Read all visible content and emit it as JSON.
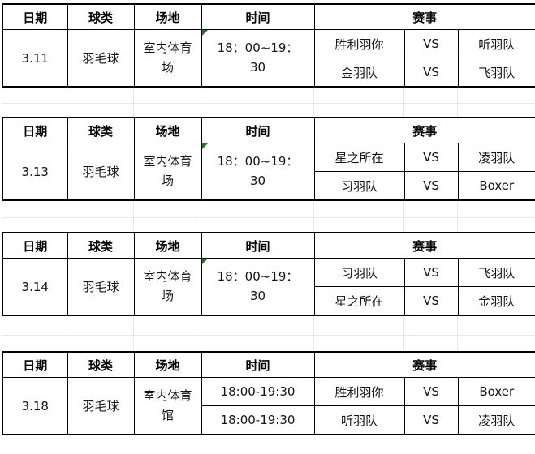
{
  "headers": {
    "date": "日期",
    "ball": "球类",
    "venue": "场地",
    "time": "时间",
    "event": "赛事"
  },
  "labels": {
    "vs": "VS"
  },
  "colors": {
    "border": "#000000",
    "flag_green": "#1e7d1e",
    "faint_grid": "#e8e8e8"
  },
  "icons": {
    "comment_flag": "green-corner-triangle"
  },
  "tables": [
    {
      "date": "3.11",
      "ball": "羽毛球",
      "venue": "室内体育场",
      "time": "18：00~19：30",
      "time_flag": true,
      "matches": [
        {
          "home": "胜利羽你",
          "away": "听羽队"
        },
        {
          "home": "金羽队",
          "away": "飞羽队"
        }
      ]
    },
    {
      "date": "3.13",
      "ball": "羽毛球",
      "venue": "室内体育场",
      "time": "18：00~19：30",
      "time_flag": true,
      "matches": [
        {
          "home": "星之所在",
          "away": "凌羽队"
        },
        {
          "home": "习羽队",
          "away": "Boxer"
        }
      ]
    },
    {
      "date": "3.14",
      "ball": "羽毛球",
      "venue": "室内体育场",
      "time": "18：00~19：30",
      "time_flag": true,
      "matches": [
        {
          "home": "习羽队",
          "away": "飞羽队"
        },
        {
          "home": "星之所在",
          "away": "金羽队"
        }
      ]
    },
    {
      "date": "3.18",
      "ball": "羽毛球",
      "venue": "室内体育馆",
      "matches": [
        {
          "time": "18:00-19:30",
          "home": "胜利羽你",
          "away": "Boxer"
        },
        {
          "time": "18:00-19:30",
          "home": "听羽队",
          "away": "凌羽队"
        }
      ]
    }
  ]
}
